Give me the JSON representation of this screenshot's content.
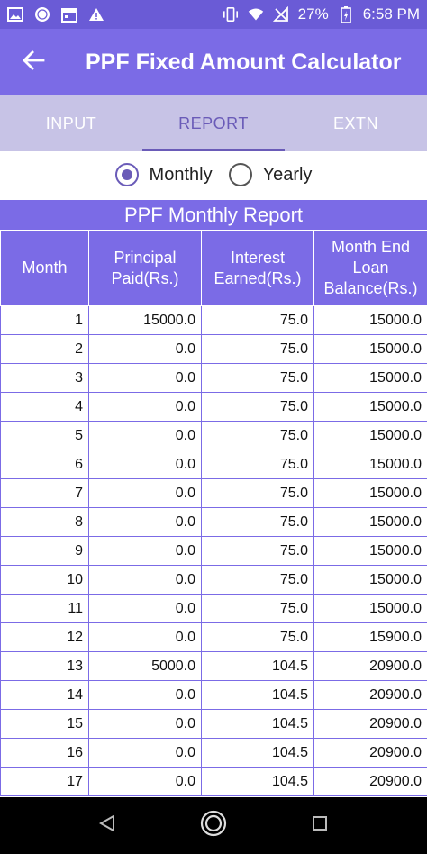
{
  "status": {
    "battery": "27%",
    "time": "6:58 PM"
  },
  "app": {
    "title": "PPF Fixed Amount Calculator"
  },
  "tabs": [
    {
      "label": "INPUT",
      "active": false
    },
    {
      "label": "REPORT",
      "active": true
    },
    {
      "label": "EXTN",
      "active": false
    }
  ],
  "mode": {
    "options": [
      "Monthly",
      "Yearly"
    ],
    "selected": "Monthly"
  },
  "report": {
    "title": "PPF Monthly Report",
    "headers": [
      "Month",
      "Principal Paid(Rs.)",
      "Interest Earned(Rs.)",
      "Month End Loan Balance(Rs.)"
    ],
    "rows": [
      [
        "1",
        "15000.0",
        "75.0",
        "15000.0"
      ],
      [
        "2",
        "0.0",
        "75.0",
        "15000.0"
      ],
      [
        "3",
        "0.0",
        "75.0",
        "15000.0"
      ],
      [
        "4",
        "0.0",
        "75.0",
        "15000.0"
      ],
      [
        "5",
        "0.0",
        "75.0",
        "15000.0"
      ],
      [
        "6",
        "0.0",
        "75.0",
        "15000.0"
      ],
      [
        "7",
        "0.0",
        "75.0",
        "15000.0"
      ],
      [
        "8",
        "0.0",
        "75.0",
        "15000.0"
      ],
      [
        "9",
        "0.0",
        "75.0",
        "15000.0"
      ],
      [
        "10",
        "0.0",
        "75.0",
        "15000.0"
      ],
      [
        "11",
        "0.0",
        "75.0",
        "15000.0"
      ],
      [
        "12",
        "0.0",
        "75.0",
        "15900.0"
      ],
      [
        "13",
        "5000.0",
        "104.5",
        "20900.0"
      ],
      [
        "14",
        "0.0",
        "104.5",
        "20900.0"
      ],
      [
        "15",
        "0.0",
        "104.5",
        "20900.0"
      ],
      [
        "16",
        "0.0",
        "104.5",
        "20900.0"
      ],
      [
        "17",
        "0.0",
        "104.5",
        "20900.0"
      ]
    ]
  },
  "icons": {
    "back": "arrow-left-icon",
    "nav_back": "triangle-back-icon",
    "nav_home": "circle-home-icon",
    "nav_recents": "square-recents-icon"
  },
  "colors": {
    "primary": "#7b6be6",
    "primary_dark": "#6a5bd6",
    "tab_bg": "#c7c3e6",
    "accent": "#6a5bb8"
  }
}
